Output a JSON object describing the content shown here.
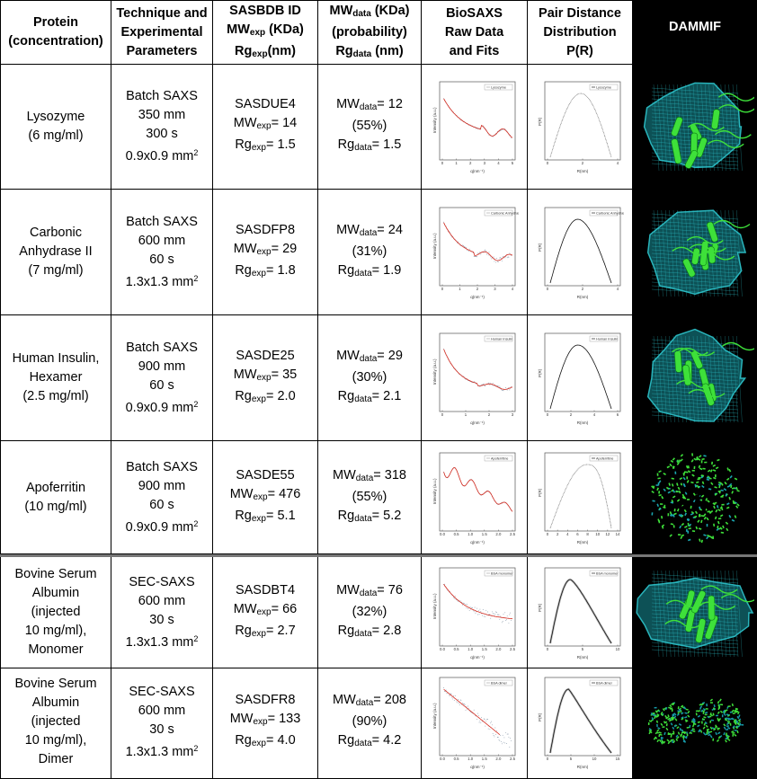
{
  "headers": {
    "protein": [
      "Protein",
      "(concentration)"
    ],
    "technique": [
      "Technique and",
      "Experimental",
      "Parameters"
    ],
    "sasbdb": [
      "SASBDB ID",
      "MW",
      "exp",
      " (KDa)",
      "Rg",
      "exp",
      "(nm)"
    ],
    "mwdata": [
      "MW",
      "data",
      " (KDa)",
      "(probability)",
      "Rg",
      "data",
      " (nm)"
    ],
    "biosaxs": [
      "BioSAXS",
      "Raw Data",
      "and Fits"
    ],
    "pr": [
      "Pair Distance",
      "Distribution",
      "P(R)"
    ],
    "dammif": "DAMMIF"
  },
  "axis_text": {
    "intensity": "Intensity (a.u.)",
    "q": "q(nm⁻¹)",
    "pr": "P(R)",
    "r": "R(nm)"
  },
  "rows": [
    {
      "protein": [
        "Lysozyme",
        "(6 mg/ml)"
      ],
      "technique": [
        "Batch SAXS",
        "350 mm",
        "300 s"
      ],
      "beam": "0.9x0.9 mm",
      "sasbdb_id": "SASDUE4",
      "mw_exp_label": "MW",
      "mw_exp_sub": "exp",
      "mw_exp_val": "= 14",
      "rg_exp_label": "Rg",
      "rg_exp_sub": "exp",
      "rg_exp_val": "= 1.5",
      "mw_data_label": "MW",
      "mw_data_sub": "data",
      "mw_data_val": "= 12",
      "prob": "(55%)",
      "rg_data_label": "Rg",
      "rg_data_sub": "data",
      "rg_data_val": "= 1.5",
      "saxs_legend": "Lysozyme",
      "saxs_xticks": [
        "0",
        "1",
        "2",
        "3",
        "4",
        "5"
      ],
      "pr_legend": "Lysozyme",
      "pr_xticks": [
        "0",
        "2",
        "4"
      ],
      "dammif_style": "mesh"
    },
    {
      "protein": [
        "Carbonic",
        "Anhydrase II",
        "(7 mg/ml)"
      ],
      "technique": [
        "Batch SAXS",
        "600 mm",
        "60 s"
      ],
      "beam": "1.3x1.3 mm",
      "sasbdb_id": "SASDFP8",
      "mw_exp_label": "MW",
      "mw_exp_sub": "exp",
      "mw_exp_val": "= 29",
      "rg_exp_label": "Rg",
      "rg_exp_sub": "exp",
      "rg_exp_val": "= 1.8",
      "mw_data_label": "MW",
      "mw_data_sub": "data",
      "mw_data_val": "= 24",
      "prob": "(31%)",
      "rg_data_label": "Rg",
      "rg_data_sub": "data",
      "rg_data_val": "= 1.9",
      "saxs_legend": "Carbonic Anhydrase II",
      "saxs_xticks": [
        "0",
        "1",
        "2",
        "3",
        "4"
      ],
      "pr_legend": "Carbonic Anhydrase II",
      "pr_xticks": [
        "0",
        "2",
        "4"
      ],
      "dammif_style": "mesh"
    },
    {
      "protein": [
        "Human Insulin,",
        "Hexamer",
        "(2.5 mg/ml)"
      ],
      "technique": [
        "Batch SAXS",
        "900 mm",
        "60 s"
      ],
      "beam": "0.9x0.9 mm",
      "sasbdb_id": "SASDE25",
      "mw_exp_label": "MW",
      "mw_exp_sub": "exp",
      "mw_exp_val": "= 35",
      "rg_exp_label": "Rg",
      "rg_exp_sub": "exp",
      "rg_exp_val": "= 2.0",
      "mw_data_label": "MW",
      "mw_data_sub": "data",
      "mw_data_val": "= 29",
      "prob": "(30%)",
      "rg_data_label": "Rg",
      "rg_data_sub": "data",
      "rg_data_val": "= 2.1",
      "saxs_legend": "Human Insulin",
      "saxs_xticks": [
        "0",
        "1",
        "2",
        "3"
      ],
      "pr_legend": "Human Insulin",
      "pr_xticks": [
        "0",
        "2",
        "4",
        "6"
      ],
      "dammif_style": "mesh"
    },
    {
      "protein": [
        "Apoferritin",
        "(10 mg/ml)"
      ],
      "technique": [
        "Batch SAXS",
        "900 mm",
        "60 s"
      ],
      "beam": "0.9x0.9 mm",
      "sasbdb_id": "SASDE55",
      "mw_exp_label": "MW",
      "mw_exp_sub": "exp",
      "mw_exp_val": "= 476",
      "rg_exp_label": "Rg",
      "rg_exp_sub": "exp",
      "rg_exp_val": "= 5.1",
      "mw_data_label": "MW",
      "mw_data_sub": "data",
      "mw_data_val": "= 318",
      "prob": "(55%)",
      "rg_data_label": "Rg",
      "rg_data_sub": "data",
      "rg_data_val": "= 5.2",
      "saxs_legend": "Apoferritine",
      "saxs_xticks": [
        "0.0",
        "0.5",
        "1.0",
        "1.5",
        "2.0",
        "2.5"
      ],
      "pr_legend": "Apoferritine",
      "pr_xticks": [
        "0",
        "2",
        "4",
        "6",
        "8",
        "10",
        "12",
        "14"
      ],
      "dammif_style": "cage"
    },
    {
      "protein": [
        "Bovine Serum",
        "Albumin",
        "(injected",
        "10 mg/ml),",
        "Monomer"
      ],
      "technique": [
        "SEC-SAXS",
        "600 mm",
        "30 s"
      ],
      "beam": "1.3x1.3 mm",
      "sasbdb_id": "SASDBT4",
      "mw_exp_label": "MW",
      "mw_exp_sub": "exp",
      "mw_exp_val": "= 66",
      "rg_exp_label": "Rg",
      "rg_exp_sub": "exp",
      "rg_exp_val": "= 2.7",
      "mw_data_label": "MW",
      "mw_data_sub": "data",
      "mw_data_val": "= 76",
      "prob": "(32%)",
      "rg_data_label": "Rg",
      "rg_data_sub": "data",
      "rg_data_val": "= 2.8",
      "saxs_legend": "BSA monomer",
      "saxs_xticks": [
        "0.0",
        "0.5",
        "1.0",
        "1.5",
        "2.0",
        "2.5"
      ],
      "pr_legend": "BSA monomer",
      "pr_xticks": [
        "0",
        "5",
        "10"
      ],
      "dammif_style": "mesh"
    },
    {
      "protein": [
        "Bovine Serum",
        "Albumin",
        "(injected",
        "10 mg/ml),",
        "Dimer"
      ],
      "technique": [
        "SEC-SAXS",
        "600 mm",
        "30 s"
      ],
      "beam": "1.3x1.3 mm",
      "sasbdb_id": "SASDFR8",
      "mw_exp_label": "MW",
      "mw_exp_sub": "exp",
      "mw_exp_val": "= 133",
      "rg_exp_label": "Rg",
      "rg_exp_sub": "exp",
      "rg_exp_val": "= 4.0",
      "mw_data_label": "MW",
      "mw_data_sub": "data",
      "mw_data_val": "= 208",
      "prob": "(90%)",
      "rg_data_label": "Rg",
      "rg_data_sub": "data",
      "rg_data_val": "= 4.2",
      "saxs_legend": "BSA dimer",
      "saxs_xticks": [
        "0.0",
        "0.5",
        "1.0",
        "1.5",
        "2.0",
        "2.5"
      ],
      "pr_legend": "BSA dimer",
      "pr_xticks": [
        "0",
        "5",
        "10",
        "15"
      ],
      "dammif_style": "pair"
    }
  ],
  "colors": {
    "fit": "#d62a1e",
    "points": "#8899aa",
    "mesh": "#2ec8d0",
    "helix": "#3ee03a",
    "dammif_bg": "#000000"
  }
}
